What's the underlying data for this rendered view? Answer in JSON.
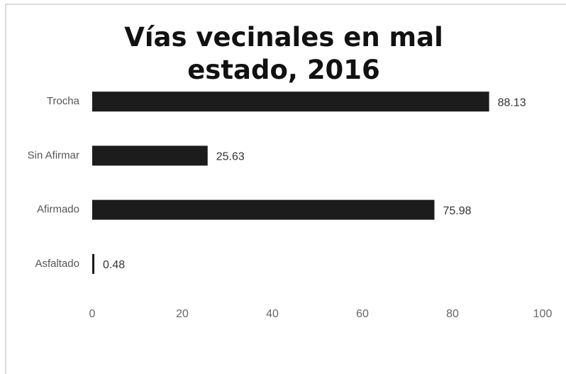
{
  "chart_data": {
    "type": "barh",
    "title": "Vías vecinales en mal estado, 2016",
    "categories": [
      "Trocha",
      "Sin Afirmar",
      "Afirmado",
      "Asfaltado"
    ],
    "values": [
      88.13,
      25.63,
      75.98,
      0.48
    ],
    "color": "#1c1c1c",
    "xlim": [
      0,
      100
    ],
    "xticks": [
      0,
      20,
      40,
      60,
      80,
      100
    ],
    "grid": false
  }
}
